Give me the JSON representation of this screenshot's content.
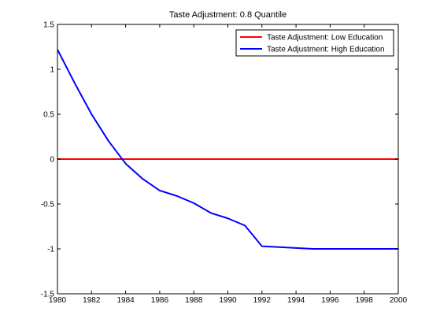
{
  "chart_data": {
    "type": "line",
    "title": "Taste Adjustment: 0.8 Quantile",
    "xlabel": "",
    "ylabel": "",
    "xlim": [
      1980,
      2000
    ],
    "ylim": [
      -1.5,
      1.5
    ],
    "xticks": [
      1980,
      1982,
      1984,
      1986,
      1988,
      1990,
      1992,
      1994,
      1996,
      1998,
      2000
    ],
    "yticks": [
      -1.5,
      -1,
      -0.5,
      0,
      0.5,
      1,
      1.5
    ],
    "xtick_labels": [
      "1980",
      "1982",
      "1984",
      "1986",
      "1988",
      "1990",
      "1992",
      "1994",
      "1996",
      "1998",
      "2000"
    ],
    "ytick_labels": [
      "-1.5",
      "-1",
      "-0.5",
      "0",
      "0.5",
      "1",
      "1.5"
    ],
    "grid": false,
    "legend_position": "top-right",
    "series": [
      {
        "name": "Taste Adjustment: Low Education",
        "color": "#ff0000",
        "x": [
          1980,
          2000
        ],
        "y": [
          0,
          0
        ]
      },
      {
        "name": "Taste Adjustment: High Education",
        "color": "#0000ff",
        "x": [
          1980,
          1981,
          1982,
          1983,
          1984,
          1985,
          1986,
          1987,
          1988,
          1989,
          1990,
          1991,
          1992,
          1993,
          1994,
          1995,
          1996,
          1997,
          1998,
          1999,
          2000
        ],
        "y": [
          1.22,
          0.85,
          0.5,
          0.2,
          -0.05,
          -0.22,
          -0.35,
          -0.41,
          -0.49,
          -0.6,
          -0.66,
          -0.74,
          -0.97,
          -0.98,
          -0.99,
          -1.0,
          -1.0,
          -1.0,
          -1.0,
          -1.0,
          -1.0
        ]
      }
    ]
  }
}
